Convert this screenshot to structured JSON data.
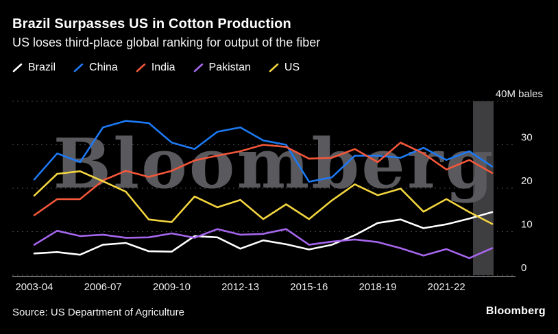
{
  "header": {
    "title": "Brazil Surpasses US in Cotton Production",
    "subtitle": "US loses third-place global ranking for output of the fiber"
  },
  "footer": {
    "source": "Source: US Department of Agriculture",
    "logo": "Bloomberg"
  },
  "watermark": "Bloomberg",
  "colors": {
    "background": "#000000",
    "grid": "#4a4a4c",
    "axis_line": "#8a8a8e",
    "tick_text": "#ededed",
    "watermark": "#5a5a5e",
    "highlight_band": "#3e3e41"
  },
  "chart_data": {
    "type": "line",
    "title": "Brazil Surpasses US in Cotton Production",
    "subtitle": "US loses third-place global ranking for output of the fiber",
    "ylabel_unit": "40M bales",
    "legend_position": "top",
    "grid": "dotted horizontal",
    "ylim": [
      0,
      40
    ],
    "x": [
      "2003-04",
      "2004-05",
      "2005-06",
      "2006-07",
      "2007-08",
      "2008-09",
      "2009-10",
      "2010-11",
      "2011-12",
      "2012-13",
      "2013-14",
      "2014-15",
      "2015-16",
      "2016-17",
      "2017-18",
      "2018-19",
      "2019-20",
      "2020-21",
      "2021-22",
      "2022-23",
      "2023-24"
    ],
    "x_tick_indices": [
      0,
      3,
      6,
      9,
      12,
      15,
      18
    ],
    "yticks": [
      {
        "value": 0,
        "label": "0"
      },
      {
        "value": 10,
        "label": "10"
      },
      {
        "value": 20,
        "label": "20"
      },
      {
        "value": 30,
        "label": "30"
      },
      {
        "value": 40,
        "label": "40M bales"
      }
    ],
    "highlight": {
      "x_index": 20
    },
    "series": [
      {
        "name": "Brazil",
        "color": "#ffffff",
        "values": [
          5.0,
          5.3,
          4.7,
          7.0,
          7.4,
          5.5,
          5.4,
          9.0,
          8.7,
          6.1,
          8.0,
          7.1,
          5.9,
          7.0,
          9.2,
          12.0,
          12.8,
          10.8,
          11.7,
          13.0,
          14.5
        ]
      },
      {
        "name": "China",
        "color": "#1d7af5",
        "values": [
          22.0,
          28.0,
          26.0,
          34.0,
          35.5,
          35.0,
          30.5,
          29.0,
          33.0,
          34.0,
          31.0,
          30.0,
          21.5,
          22.5,
          27.5,
          27.5,
          27.0,
          29.3,
          26.5,
          28.5,
          25.0
        ]
      },
      {
        "name": "India",
        "color": "#f4573a",
        "values": [
          13.8,
          17.5,
          17.5,
          21.8,
          24.0,
          22.6,
          24.0,
          26.4,
          27.5,
          28.5,
          30.0,
          29.5,
          26.8,
          27.0,
          29.0,
          26.0,
          30.5,
          28.0,
          24.3,
          26.5,
          23.5
        ]
      },
      {
        "name": "Pakistan",
        "color": "#a667ee",
        "values": [
          7.0,
          10.2,
          9.0,
          9.3,
          8.6,
          8.7,
          9.6,
          8.6,
          10.6,
          9.3,
          9.5,
          10.6,
          7.0,
          7.7,
          8.2,
          7.6,
          6.2,
          4.5,
          6.0,
          3.9,
          6.2
        ]
      },
      {
        "name": "US",
        "color": "#f3d63f",
        "values": [
          18.3,
          23.3,
          23.9,
          21.6,
          19.2,
          12.8,
          12.2,
          18.1,
          15.6,
          17.3,
          12.9,
          16.3,
          12.9,
          17.2,
          20.9,
          18.4,
          19.9,
          14.6,
          17.5,
          14.5,
          11.8
        ]
      }
    ]
  }
}
